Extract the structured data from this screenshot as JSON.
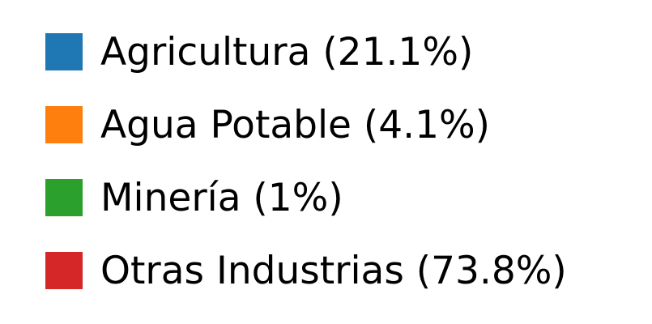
{
  "chart_data": {
    "type": "pie",
    "legend_placement": "standalone",
    "slices": [
      {
        "label": "Agricultura (21.1%)",
        "category": "Agricultura",
        "value": 21.1,
        "color": "#1f77b4"
      },
      {
        "label": "Agua Potable (4.1%)",
        "category": "Agua Potable",
        "value": 4.1,
        "color": "#ff7f0e"
      },
      {
        "label": "Minería (1%)",
        "category": "Minería",
        "value": 1,
        "color": "#2ca02c"
      },
      {
        "label": "Otras Industrias (73.8%)",
        "category": "Otras Industrias",
        "value": 73.8,
        "color": "#d62728"
      }
    ]
  }
}
